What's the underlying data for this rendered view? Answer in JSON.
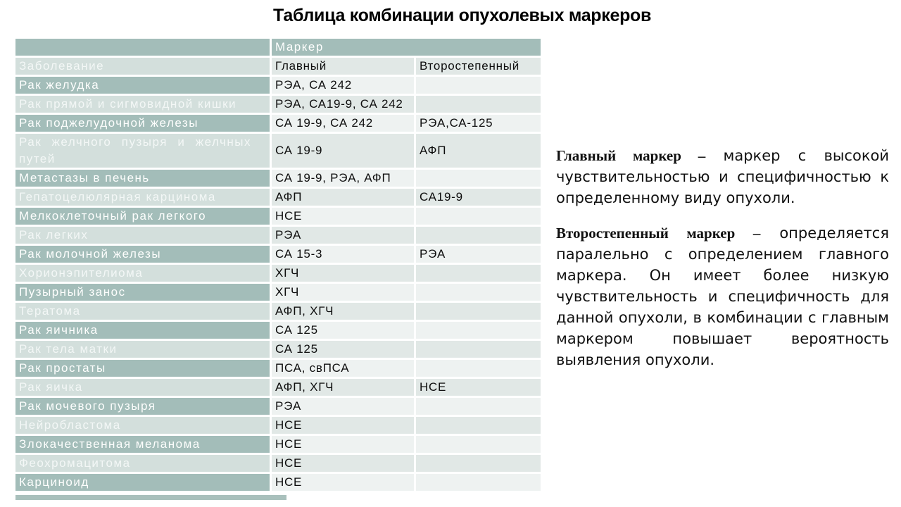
{
  "title": "Таблица комбинации опухолевых маркеров",
  "table": {
    "header": {
      "marker_label": "Маркер",
      "disease_label": "Заболевание",
      "main_label": "Главный",
      "secondary_label": "Второстепенный"
    },
    "rows": [
      {
        "disease": "Рак желудка",
        "main": "РЭА, СА 242",
        "secondary": ""
      },
      {
        "disease": "Рак прямой и сигмовидной кишки",
        "main": "РЭА, СА19-9, СА 242",
        "secondary": ""
      },
      {
        "disease": "Рак поджелудочной железы",
        "main": "СА 19-9, СА 242",
        "secondary": "РЭА,СА-125"
      },
      {
        "disease": "Рак желчного пузыря и желчных путей",
        "main": "СА 19-9",
        "secondary": "АФП"
      },
      {
        "disease": "Метастазы в печень",
        "main": "СА 19-9, РЭА, АФП",
        "secondary": ""
      },
      {
        "disease": "Гепатоцелюлярная карцинома",
        "main": "АФП",
        "secondary": "СА19-9"
      },
      {
        "disease": "Мелкоклеточный рак легкого",
        "main": "НСЕ",
        "secondary": ""
      },
      {
        "disease": "Рак легких",
        "main": "РЭА",
        "secondary": ""
      },
      {
        "disease": "Рак молочной железы",
        "main": "СА 15-3",
        "secondary": "РЭА"
      },
      {
        "disease": "Хорионэпителиома",
        "main": "ХГЧ",
        "secondary": ""
      },
      {
        "disease": "Пузырный занос",
        "main": "ХГЧ",
        "secondary": ""
      },
      {
        "disease": "Тератома",
        "main": "АФП, ХГЧ",
        "secondary": ""
      },
      {
        "disease": "Рак яичника",
        "main": "СА 125",
        "secondary": ""
      },
      {
        "disease": "Рак тела матки",
        "main": "СА 125",
        "secondary": ""
      },
      {
        "disease": "Рак простаты",
        "main": "ПСА, свПСА",
        "secondary": ""
      },
      {
        "disease": "Рак яичка",
        "main": "АФП, ХГЧ",
        "secondary": "НСЕ"
      },
      {
        "disease": "Рак мочевого пузыря",
        "main": "РЭА",
        "secondary": ""
      },
      {
        "disease": "Нейробластома",
        "main": "НСЕ",
        "secondary": ""
      },
      {
        "disease": "Злокачественная меланома",
        "main": "НСЕ",
        "secondary": ""
      },
      {
        "disease": "Феохромацитома",
        "main": "НСЕ",
        "secondary": ""
      },
      {
        "disease": "Карциноид",
        "main": "НСЕ",
        "secondary": ""
      }
    ]
  },
  "notes": [
    {
      "term": "Главный маркер –",
      "text": " маркер с высокой чувствительностью и специфичностью к определенному виду опухоли."
    },
    {
      "term": "Второстепенный маркер –",
      "text": " определяется паралельно с определением главного маркера. Он имеет более низкую чувствительность и специфичность для данной опухоли, в комбинации с главным маркером повышает вероятность выявления опухоли."
    }
  ],
  "colors": {
    "dark_teal": "#a3bdb9",
    "light_teal": "#d3dfdc",
    "row_light": "#eef2f1",
    "row_mid": "#e1e8e6",
    "text_on_teal": "#fdfefd",
    "text_dark": "#111111",
    "background": "#ffffff"
  }
}
